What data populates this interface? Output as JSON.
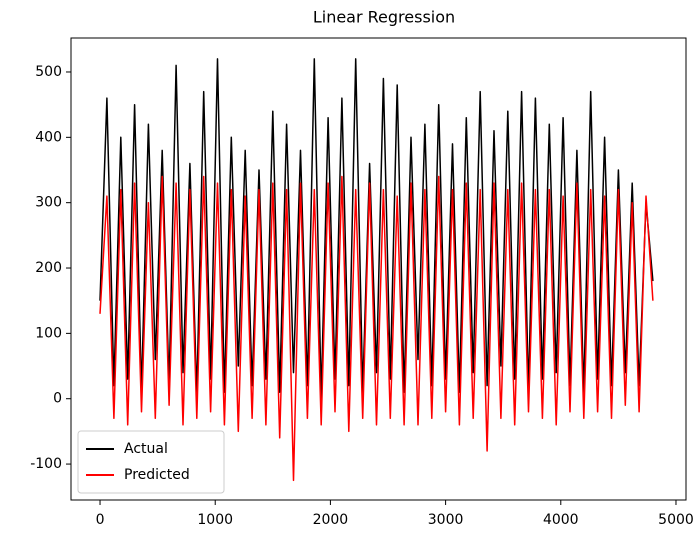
{
  "chart_data": {
    "type": "line",
    "title": "Linear Regression",
    "x": [
      0,
      60,
      120,
      180,
      240,
      300,
      360,
      420,
      480,
      540,
      600,
      660,
      720,
      780,
      840,
      900,
      960,
      1020,
      1080,
      1140,
      1200,
      1260,
      1320,
      1380,
      1440,
      1500,
      1560,
      1620,
      1680,
      1740,
      1800,
      1860,
      1920,
      1980,
      2040,
      2100,
      2160,
      2220,
      2280,
      2340,
      2400,
      2460,
      2520,
      2580,
      2640,
      2700,
      2760,
      2820,
      2880,
      2940,
      3000,
      3060,
      3120,
      3180,
      3240,
      3300,
      3360,
      3420,
      3480,
      3540,
      3600,
      3660,
      3720,
      3780,
      3840,
      3900,
      3960,
      4020,
      4080,
      4140,
      4200,
      4260,
      4320,
      4380,
      4440,
      4500,
      4560,
      4620,
      4680,
      4740,
      4800
    ],
    "series": [
      {
        "name": "Actual",
        "color": "#000000",
        "values": [
          150,
          460,
          20,
          400,
          30,
          450,
          10,
          420,
          60,
          380,
          20,
          510,
          40,
          360,
          5,
          470,
          30,
          520,
          10,
          400,
          50,
          380,
          20,
          350,
          30,
          440,
          10,
          420,
          40,
          380,
          20,
          520,
          0,
          430,
          30,
          460,
          20,
          520,
          10,
          360,
          40,
          490,
          30,
          480,
          10,
          400,
          60,
          420,
          20,
          450,
          30,
          390,
          10,
          430,
          40,
          470,
          20,
          410,
          50,
          440,
          30,
          470,
          10,
          460,
          30,
          420,
          40,
          430,
          20,
          380,
          10,
          470,
          30,
          400,
          20,
          350,
          40,
          330,
          20,
          300,
          180
        ]
      },
      {
        "name": "Predicted",
        "color": "#ff0000",
        "values": [
          130,
          310,
          -30,
          320,
          -40,
          330,
          -20,
          300,
          -30,
          340,
          -10,
          330,
          -40,
          320,
          -30,
          340,
          -20,
          330,
          -40,
          320,
          -50,
          310,
          -30,
          320,
          -40,
          330,
          -60,
          320,
          -125,
          330,
          -30,
          320,
          -40,
          330,
          -20,
          340,
          -50,
          320,
          -30,
          330,
          -40,
          320,
          -30,
          310,
          -40,
          330,
          -40,
          320,
          -30,
          340,
          -20,
          320,
          -40,
          330,
          -30,
          320,
          -80,
          330,
          -30,
          320,
          -40,
          330,
          -20,
          320,
          -30,
          320,
          -40,
          310,
          -20,
          330,
          -30,
          320,
          -20,
          310,
          -30,
          320,
          -10,
          300,
          -20,
          310,
          150
        ]
      }
    ],
    "xlim": [
      -252,
      5087
    ],
    "ylim": [
      -155,
      552
    ],
    "xticks": [
      0,
      1000,
      2000,
      3000,
      4000,
      5000
    ],
    "yticks": [
      -100,
      0,
      100,
      200,
      300,
      400,
      500
    ],
    "legend": "lower left"
  }
}
